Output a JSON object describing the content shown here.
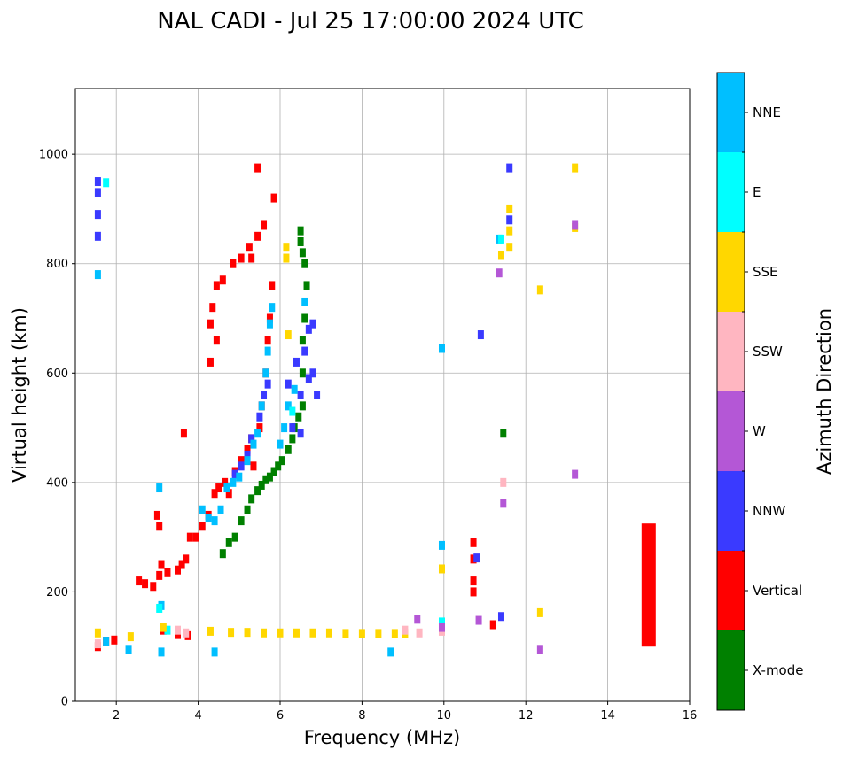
{
  "chart_data": {
    "type": "scatter",
    "title": "NAL CADI - Jul 25 17:00:00 2024 UTC",
    "xlabel": "Frequency (MHz)",
    "ylabel": "Virtual height (km)",
    "xlim": [
      1,
      16
    ],
    "ylim": [
      0,
      1120
    ],
    "xticks": [
      2,
      4,
      6,
      8,
      10,
      12,
      14,
      16
    ],
    "yticks": [
      0,
      200,
      400,
      600,
      800,
      1000
    ],
    "grid": true,
    "colorbar": {
      "label": "Azimuth Direction",
      "categories": [
        "X-mode",
        "Vertical",
        "NNW",
        "W",
        "SSW",
        "SSE",
        "E",
        "NNE"
      ],
      "colors": [
        "#008000",
        "#ff0000",
        "#3a3aff",
        "#b457d6",
        "#ffb6c1",
        "#ffd700",
        "#00ffff",
        "#00bfff"
      ]
    },
    "series": [
      {
        "name": "Vertical",
        "points": [
          [
            1.55,
            100
          ],
          [
            1.75,
            110
          ],
          [
            1.95,
            112
          ],
          [
            2.55,
            220
          ],
          [
            2.7,
            215
          ],
          [
            2.9,
            210
          ],
          [
            3.05,
            230
          ],
          [
            3.1,
            250
          ],
          [
            3.25,
            235
          ],
          [
            3.5,
            240
          ],
          [
            3.6,
            250
          ],
          [
            3.7,
            260
          ],
          [
            3.8,
            300
          ],
          [
            3.95,
            300
          ],
          [
            4.1,
            320
          ],
          [
            4.25,
            340
          ],
          [
            4.4,
            380
          ],
          [
            4.5,
            390
          ],
          [
            4.65,
            400
          ],
          [
            4.75,
            380
          ],
          [
            4.9,
            420
          ],
          [
            5.05,
            440
          ],
          [
            5.2,
            460
          ],
          [
            5.3,
            480
          ],
          [
            5.35,
            430
          ],
          [
            5.5,
            500
          ],
          [
            5.55,
            540
          ],
          [
            5.65,
            600
          ],
          [
            5.7,
            660
          ],
          [
            5.75,
            700
          ],
          [
            5.8,
            760
          ],
          [
            5.6,
            870
          ],
          [
            5.45,
            850
          ],
          [
            5.25,
            830
          ],
          [
            5.05,
            810
          ],
          [
            4.85,
            800
          ],
          [
            4.6,
            770
          ],
          [
            4.45,
            760
          ],
          [
            4.35,
            720
          ],
          [
            4.3,
            690
          ],
          [
            4.45,
            660
          ],
          [
            4.3,
            620
          ],
          [
            3.65,
            490
          ],
          [
            3.0,
            340
          ],
          [
            3.05,
            320
          ],
          [
            3.15,
            130
          ],
          [
            3.5,
            122
          ],
          [
            3.75,
            120
          ],
          [
            10.72,
            290
          ],
          [
            10.72,
            260
          ],
          [
            10.72,
            220
          ],
          [
            10.72,
            200
          ],
          [
            11.2,
            140
          ],
          [
            5.45,
            975
          ],
          [
            5.85,
            920
          ],
          [
            5.3,
            810
          ]
        ]
      },
      {
        "name": "X-mode",
        "points": [
          [
            4.6,
            270
          ],
          [
            4.75,
            290
          ],
          [
            4.9,
            300
          ],
          [
            5.05,
            330
          ],
          [
            5.2,
            350
          ],
          [
            5.3,
            370
          ],
          [
            5.45,
            385
          ],
          [
            5.55,
            395
          ],
          [
            5.65,
            405
          ],
          [
            5.75,
            410
          ],
          [
            5.85,
            420
          ],
          [
            5.95,
            430
          ],
          [
            6.05,
            440
          ],
          [
            6.2,
            460
          ],
          [
            6.3,
            480
          ],
          [
            6.35,
            500
          ],
          [
            6.45,
            520
          ],
          [
            6.55,
            540
          ],
          [
            6.55,
            600
          ],
          [
            6.55,
            660
          ],
          [
            6.6,
            700
          ],
          [
            6.65,
            760
          ],
          [
            6.6,
            800
          ],
          [
            6.55,
            820
          ],
          [
            6.5,
            840
          ],
          [
            6.5,
            860
          ],
          [
            11.45,
            490
          ]
        ]
      },
      {
        "name": "NNW",
        "points": [
          [
            1.55,
            950
          ],
          [
            1.55,
            930
          ],
          [
            1.55,
            890
          ],
          [
            1.55,
            850
          ],
          [
            4.9,
            415
          ],
          [
            5.05,
            430
          ],
          [
            5.2,
            450
          ],
          [
            5.3,
            480
          ],
          [
            5.5,
            520
          ],
          [
            5.6,
            560
          ],
          [
            5.7,
            580
          ],
          [
            6.2,
            580
          ],
          [
            6.5,
            560
          ],
          [
            6.7,
            590
          ],
          [
            6.8,
            600
          ],
          [
            6.9,
            560
          ],
          [
            6.6,
            640
          ],
          [
            6.7,
            680
          ],
          [
            6.8,
            690
          ],
          [
            6.4,
            620
          ],
          [
            6.3,
            500
          ],
          [
            6.5,
            490
          ],
          [
            10.9,
            670
          ],
          [
            11.4,
            155
          ],
          [
            11.6,
            975
          ],
          [
            11.6,
            880
          ],
          [
            10.8,
            262
          ]
        ]
      },
      {
        "name": "NNE",
        "points": [
          [
            1.55,
            780
          ],
          [
            1.75,
            110
          ],
          [
            2.3,
            95
          ],
          [
            3.05,
            390
          ],
          [
            3.1,
            175
          ],
          [
            4.1,
            350
          ],
          [
            4.25,
            335
          ],
          [
            4.4,
            330
          ],
          [
            4.55,
            350
          ],
          [
            4.7,
            390
          ],
          [
            4.85,
            400
          ],
          [
            5.0,
            410
          ],
          [
            5.2,
            440
          ],
          [
            5.35,
            470
          ],
          [
            5.45,
            490
          ],
          [
            5.55,
            540
          ],
          [
            5.65,
            600
          ],
          [
            5.7,
            640
          ],
          [
            5.75,
            690
          ],
          [
            5.8,
            720
          ],
          [
            6.0,
            470
          ],
          [
            6.1,
            500
          ],
          [
            6.2,
            540
          ],
          [
            6.35,
            570
          ],
          [
            6.6,
            730
          ],
          [
            4.4,
            90
          ],
          [
            3.1,
            90
          ],
          [
            8.7,
            90
          ],
          [
            9.95,
            645
          ],
          [
            9.95,
            285
          ],
          [
            11.35,
            845
          ]
        ]
      },
      {
        "name": "E",
        "points": [
          [
            1.75,
            948
          ],
          [
            3.05,
            170
          ],
          [
            3.25,
            130
          ],
          [
            6.3,
            530
          ],
          [
            9.95,
            145
          ],
          [
            11.4,
            845
          ]
        ]
      },
      {
        "name": "SSE",
        "points": [
          [
            1.55,
            125
          ],
          [
            2.35,
            118
          ],
          [
            3.15,
            135
          ],
          [
            4.3,
            128
          ],
          [
            4.8,
            126
          ],
          [
            5.2,
            126
          ],
          [
            5.6,
            125
          ],
          [
            6.0,
            125
          ],
          [
            6.4,
            125
          ],
          [
            6.8,
            125
          ],
          [
            7.2,
            125
          ],
          [
            7.6,
            124
          ],
          [
            8.0,
            124
          ],
          [
            8.4,
            124
          ],
          [
            8.8,
            124
          ],
          [
            9.05,
            124
          ],
          [
            6.2,
            670
          ],
          [
            6.15,
            830
          ],
          [
            6.15,
            810
          ],
          [
            11.6,
            900
          ],
          [
            11.6,
            860
          ],
          [
            11.6,
            830
          ],
          [
            11.4,
            815
          ],
          [
            12.35,
            752
          ],
          [
            13.2,
            975
          ],
          [
            13.2,
            866
          ],
          [
            12.35,
            162
          ],
          [
            9.95,
            242
          ]
        ]
      },
      {
        "name": "SSW",
        "points": [
          [
            1.55,
            105
          ],
          [
            3.5,
            130
          ],
          [
            3.7,
            125
          ],
          [
            9.05,
            130
          ],
          [
            9.4,
            125
          ],
          [
            11.45,
            400
          ],
          [
            9.95,
            128
          ]
        ]
      },
      {
        "name": "W",
        "points": [
          [
            9.35,
            150
          ],
          [
            10.85,
            148
          ],
          [
            11.35,
            783
          ],
          [
            11.45,
            362
          ],
          [
            13.2,
            870
          ],
          [
            13.2,
            415
          ],
          [
            12.35,
            95
          ],
          [
            9.95,
            135
          ]
        ]
      }
    ],
    "bars": [
      {
        "name": "Vertical",
        "x": 15.0,
        "y0": 100,
        "y1": 325
      }
    ]
  }
}
